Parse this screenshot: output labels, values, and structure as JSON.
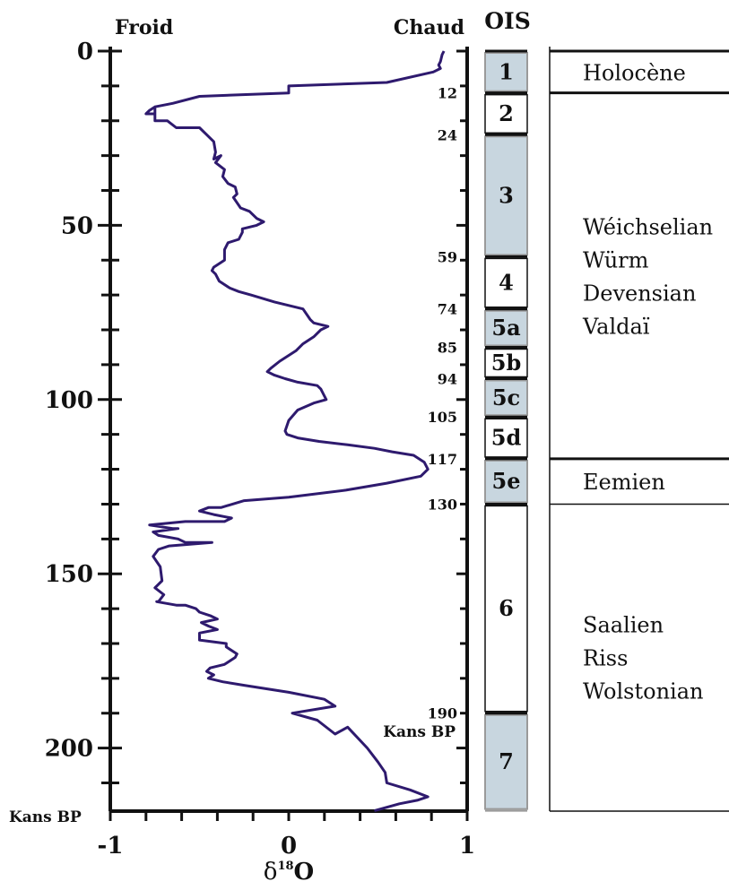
{
  "chart_data": {
    "type": "line",
    "header_left": "Froid",
    "header_right": "Chaud",
    "ois_header": "OIS",
    "y_axis_label": "Kans BP",
    "y_ticks": [
      "0",
      "50",
      "100",
      "150",
      "200"
    ],
    "ylim": [
      0,
      218
    ],
    "x_ticks": [
      "-1",
      "0",
      "1"
    ],
    "xlim": [
      -1,
      1
    ],
    "x_label_base": "δ",
    "x_label_sup": "18",
    "x_label_rest": "O",
    "line_color": "#2e1a6e",
    "series": [
      {
        "x": [
          0.87,
          0.86,
          0.85,
          0.84,
          0.85,
          0.81,
          0.55,
          0.0,
          0.0,
          -0.5,
          -0.65,
          -0.75,
          -0.75,
          -0.8,
          -0.78,
          -0.75,
          -0.75,
          -0.68,
          -0.63,
          -0.5,
          -0.46,
          -0.42,
          -0.41,
          -0.42,
          -0.38,
          -0.41,
          -0.36,
          -0.37,
          -0.34,
          -0.3,
          -0.29,
          -0.31,
          -0.27,
          -0.22,
          -0.18,
          -0.14,
          -0.18,
          -0.26,
          -0.26,
          -0.28,
          -0.34,
          -0.36,
          -0.36,
          -0.42,
          -0.43,
          -0.41,
          -0.39,
          -0.33,
          -0.28,
          -0.21,
          -0.08,
          0.08,
          0.12,
          0.14,
          0.22,
          0.18,
          0.14,
          0.08,
          0.04,
          -0.05,
          -0.1,
          -0.12,
          -0.08,
          -0.02,
          0.05,
          0.16,
          0.18,
          0.19,
          0.21,
          0.14,
          0.05,
          0.0,
          -0.02,
          -0.01,
          0.05,
          0.17,
          0.33,
          0.48,
          0.58,
          0.7,
          0.76,
          0.78,
          0.74,
          0.55,
          0.32,
          0.0,
          -0.25,
          -0.38,
          -0.45,
          -0.5,
          -0.42,
          -0.32,
          -0.36,
          -0.58,
          -0.78,
          -0.65,
          -0.62,
          -0.76,
          -0.73,
          -0.62,
          -0.58,
          -0.43,
          -0.67,
          -0.73,
          -0.76,
          -0.72,
          -0.71,
          -0.75,
          -0.7,
          -0.73,
          -0.74,
          -0.63,
          -0.58,
          -0.52,
          -0.5,
          -0.44,
          -0.4,
          -0.49,
          -0.45,
          -0.4,
          -0.5,
          -0.5,
          -0.35,
          -0.35,
          -0.29,
          -0.3,
          -0.36,
          -0.44,
          -0.46,
          -0.42,
          -0.45,
          -0.37,
          -0.25,
          0.0,
          0.2,
          0.26,
          0.02,
          0.16,
          0.26,
          0.33,
          0.44,
          0.5,
          0.54,
          0.55,
          0.68,
          0.78,
          0.72,
          0.62,
          0.55,
          0.48
        ],
        "y": [
          0,
          1,
          3,
          4,
          5,
          6,
          9,
          10,
          12,
          13,
          15,
          16,
          18,
          18,
          17,
          16,
          20,
          20,
          22,
          22,
          24,
          26,
          29,
          31,
          30,
          32,
          34,
          36,
          38,
          39,
          41,
          42,
          45,
          46,
          48,
          49,
          50,
          51,
          52,
          54,
          55,
          57,
          60,
          62,
          63,
          64,
          66,
          68,
          69,
          70,
          72,
          74,
          77,
          78,
          79,
          80,
          82,
          84,
          86,
          89,
          91,
          92,
          93,
          94,
          95,
          96,
          97,
          98,
          100,
          101,
          103,
          106,
          109,
          110,
          111,
          112,
          113,
          114,
          115,
          116,
          118,
          120,
          122,
          124,
          126,
          128,
          129,
          131,
          131,
          132,
          133,
          134,
          135,
          135,
          136,
          137,
          137,
          138,
          139,
          140,
          141,
          141,
          142,
          143,
          145,
          148,
          152,
          154,
          156,
          158,
          158,
          159,
          159,
          160,
          161,
          162,
          163,
          164,
          165,
          166,
          167,
          169,
          170,
          171,
          173,
          174,
          176,
          177,
          178,
          179,
          180,
          181,
          182,
          184,
          186,
          188,
          190,
          192,
          196,
          194,
          200,
          204,
          207,
          210,
          212,
          214,
          215,
          216,
          217,
          218
        ]
      }
    ],
    "stages": [
      {
        "label": "1",
        "top": 0,
        "bottom": 12,
        "shaded": true
      },
      {
        "label": "2",
        "top": 12,
        "bottom": 24,
        "shaded": false
      },
      {
        "label": "3",
        "top": 24,
        "bottom": 59,
        "shaded": true
      },
      {
        "label": "4",
        "top": 59,
        "bottom": 74,
        "shaded": false
      },
      {
        "label": "5a",
        "top": 74,
        "bottom": 85,
        "shaded": true
      },
      {
        "label": "5b",
        "top": 85,
        "bottom": 94,
        "shaded": false
      },
      {
        "label": "5c",
        "top": 94,
        "bottom": 105,
        "shaded": true
      },
      {
        "label": "5d",
        "top": 105,
        "bottom": 117,
        "shaded": false
      },
      {
        "label": "5e",
        "top": 117,
        "bottom": 130,
        "shaded": true
      },
      {
        "label": "6",
        "top": 130,
        "bottom": 190,
        "shaded": false
      },
      {
        "label": "7",
        "top": 190,
        "bottom": 218,
        "shaded": true
      }
    ],
    "stage_fill": "#c8d6df",
    "age_labels": [
      "12",
      "24",
      "59",
      "74",
      "85",
      "94",
      "105",
      "117",
      "130",
      "190"
    ],
    "age_values": [
      12,
      24,
      59,
      74,
      85,
      94,
      105,
      117,
      130,
      190
    ],
    "kans_bp_label_2": "Kans BP",
    "periods": [
      {
        "lines": [
          "Holocène"
        ],
        "top": 0,
        "bottom": 12
      },
      {
        "lines": [
          "Wéichselian",
          "Würm",
          "Devensian",
          "Valdaï"
        ],
        "top": 12,
        "bottom": 117
      },
      {
        "lines": [
          "Eemien"
        ],
        "top": 117,
        "bottom": 130
      },
      {
        "lines": [
          "Saalien",
          "Riss",
          "Wolstonian"
        ],
        "top": 130,
        "bottom": 218
      }
    ]
  }
}
